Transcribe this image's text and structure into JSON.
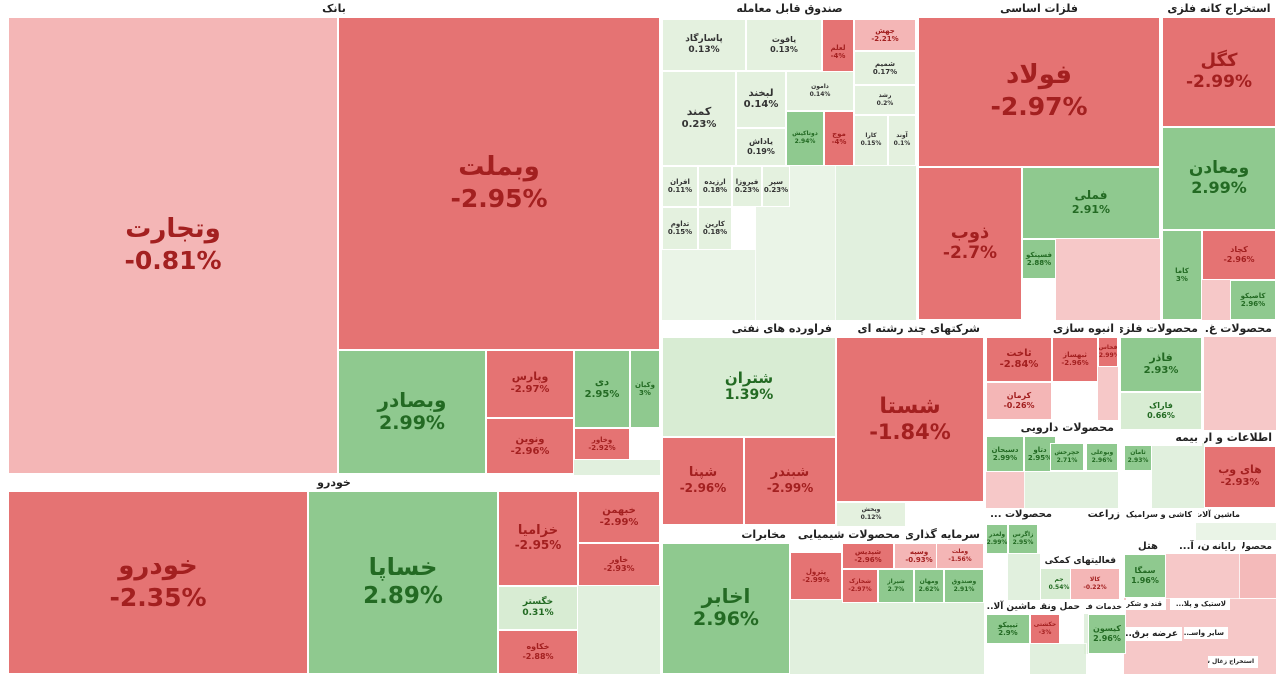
{
  "palette": {
    "neg_strong": "#e57373",
    "neg_light": "#f4b6b6",
    "pos_strong": "#8fc98f",
    "pos_light": "#d8ecd3",
    "neutral": "#e4f1df",
    "text_neg": "#a32020",
    "text_pos": "#236a23",
    "text_dark": "#333333"
  },
  "chart_data": {
    "type": "treemap",
    "title": "",
    "sectors": [
      {
        "name": "بانک"
      },
      {
        "name": "خودرو"
      },
      {
        "name": "صندوق قابل معامله"
      },
      {
        "name": "فلزات اساسی"
      },
      {
        "name": "استخراج کانه فلزی"
      },
      {
        "name": "فراورده های نفتی"
      },
      {
        "name": "شرکتهای چند رشته ای"
      },
      {
        "name": "انبوه سازی"
      },
      {
        "name": "محصولات فلزی"
      },
      {
        "name": "محصولات غ..."
      },
      {
        "name": "محصولات دارویی"
      },
      {
        "name": "بیمه"
      },
      {
        "name": "اطلاعات و ارتبا..."
      },
      {
        "name": "مخابرات"
      },
      {
        "name": "محصولات شیمیایی"
      },
      {
        "name": "سرمایه گذاری"
      },
      {
        "name": "زراعت"
      },
      {
        "name": "محصولات ..."
      },
      {
        "name": "هتل"
      },
      {
        "name": "سیمان، آ..."
      },
      {
        "name": "رایانه"
      },
      {
        "name": "محصولا..."
      },
      {
        "name": "فعالیتهای کمکی"
      },
      {
        "name": "حمل ونقل"
      },
      {
        "name": "ماشین آلا..."
      },
      {
        "name": "خدمات ف..."
      },
      {
        "name": "کاشی و سرامیک"
      },
      {
        "name": "ماشین آلات"
      },
      {
        "name": "قند و شکر"
      },
      {
        "name": "لاستیک و پلا..."
      },
      {
        "name": "عرضه برق..."
      },
      {
        "name": "سایر واسـ..."
      },
      {
        "name": "استخراج زغال سنگ"
      }
    ],
    "stocks": [
      {
        "symbol": "وتجارت",
        "change": -0.81
      },
      {
        "symbol": "وبملت",
        "change": -2.95
      },
      {
        "symbol": "وبصادر",
        "change": 2.99
      },
      {
        "symbol": "وپارس",
        "change": -2.97
      },
      {
        "symbol": "ونوین",
        "change": -2.96
      },
      {
        "symbol": "دی",
        "change": 2.95
      },
      {
        "symbol": "وکبان",
        "change": 3
      },
      {
        "symbol": "وخاور",
        "change": -2.92
      },
      {
        "symbol": "خودرو",
        "change": -2.35
      },
      {
        "symbol": "خساپا",
        "change": 2.89
      },
      {
        "symbol": "خزامیا",
        "change": -2.95
      },
      {
        "symbol": "خبهمن",
        "change": -2.99
      },
      {
        "symbol": "خاور",
        "change": -2.93
      },
      {
        "symbol": "خگستر",
        "change": 0.31
      },
      {
        "symbol": "خکاوه",
        "change": -2.88
      },
      {
        "symbol": "پاسارگاد",
        "change": 0.13
      },
      {
        "symbol": "یاقوت",
        "change": 0.13
      },
      {
        "symbol": "لعلم",
        "change": -4
      },
      {
        "symbol": "جهش",
        "change": -2.21
      },
      {
        "symbol": "شمیم",
        "change": 0.17
      },
      {
        "symbol": "کمند",
        "change": 0.23
      },
      {
        "symbol": "لبخند",
        "change": 0.14
      },
      {
        "symbol": "دامون",
        "change": 0.14
      },
      {
        "symbol": "رشد",
        "change": 0.2
      },
      {
        "symbol": "یاداش",
        "change": 0.19
      },
      {
        "symbol": "دوتاکیش",
        "change": 2.94
      },
      {
        "symbol": "موج",
        "change": -4
      },
      {
        "symbol": "کارا",
        "change": 0.15
      },
      {
        "symbol": "آوند",
        "change": 0.1
      },
      {
        "symbol": "افران",
        "change": 0.11
      },
      {
        "symbol": "ارزیده",
        "change": 0.18
      },
      {
        "symbol": "فیروزا",
        "change": 0.23
      },
      {
        "symbol": "سپر",
        "change": 0.23
      },
      {
        "symbol": "تداوم",
        "change": 0.15
      },
      {
        "symbol": "کارین",
        "change": 0.18
      },
      {
        "symbol": "فولاد",
        "change": -2.97
      },
      {
        "symbol": "ذوب",
        "change": -2.7
      },
      {
        "symbol": "فملی",
        "change": 2.91
      },
      {
        "symbol": "فسپنکو",
        "change": 2.88
      },
      {
        "symbol": "کگل",
        "change": -2.99
      },
      {
        "symbol": "ومعادن",
        "change": 2.99
      },
      {
        "symbol": "کچاد",
        "change": -2.96
      },
      {
        "symbol": "کاما",
        "change": 3
      },
      {
        "symbol": "کاصیکو",
        "change": 2.96
      },
      {
        "symbol": "شتران",
        "change": 1.39
      },
      {
        "symbol": "شپنا",
        "change": -2.96
      },
      {
        "symbol": "شبندر",
        "change": -2.99
      },
      {
        "symbol": "شستا",
        "change": -1.84
      },
      {
        "symbol": "وپخش",
        "change": 0.12
      },
      {
        "symbol": "ثاخت",
        "change": -2.84
      },
      {
        "symbol": "ثبهساز",
        "change": -2.96
      },
      {
        "symbol": "کرمان",
        "change": -0.26
      },
      {
        "symbol": "فخاس",
        "change": -2.99
      },
      {
        "symbol": "فاذر",
        "change": 2.93
      },
      {
        "symbol": "فاراک",
        "change": 0.66
      },
      {
        "symbol": "دسبحان",
        "change": 2.99
      },
      {
        "symbol": "دتاو",
        "change": 2.95
      },
      {
        "symbol": "های وب",
        "change": -2.93
      },
      {
        "symbol": "اخابر",
        "change": 2.96
      },
      {
        "symbol": "شپدیس",
        "change": -2.96
      },
      {
        "symbol": "وسپه",
        "change": -0.93
      },
      {
        "symbol": "پترول",
        "change": -2.99
      },
      {
        "symbol": "شخارک",
        "change": -2.97
      },
      {
        "symbol": "شیراز",
        "change": 2.7
      },
      {
        "symbol": "ومهان",
        "change": 2.62
      },
      {
        "symbol": "وصندوق",
        "change": 2.91
      },
      {
        "symbol": "ولغدر",
        "change": 2.99
      },
      {
        "symbol": "زاگرس",
        "change": 2.95
      },
      {
        "symbol": "سمگا",
        "change": 1.96
      },
      {
        "symbol": "جم",
        "change": 0.54
      },
      {
        "symbol": "کالا",
        "change": -0.22
      },
      {
        "symbol": "حکشتی",
        "change": -3
      },
      {
        "symbol": "تیپیکو",
        "change": 2.9
      },
      {
        "symbol": "کیسون",
        "change": 2.96
      },
      {
        "symbol": "ثامان",
        "change": 2.93
      },
      {
        "symbol": "خچرخش",
        "change": 2.71
      },
      {
        "symbol": "وبوعلی",
        "change": 2.96
      },
      {
        "symbol": "وملت",
        "change": -1.56
      }
    ]
  },
  "tiles": [
    {
      "sym": "وتجارت",
      "chg": "-0.81%",
      "tone": "neg_light"
    },
    {
      "sym": "وبملت",
      "chg": "-2.95%",
      "tone": "neg_strong"
    },
    {
      "sym": "وبصادر",
      "chg": "2.99%",
      "tone": "pos_strong"
    },
    {
      "sym": "وپارس",
      "chg": "-2.97%",
      "tone": "neg_strong"
    },
    {
      "sym": "ونوین",
      "chg": "-2.96%",
      "tone": "neg_strong"
    },
    {
      "sym": "دی",
      "chg": "2.95%",
      "tone": "pos_strong"
    },
    {
      "sym": "وکبان",
      "chg": "3%",
      "tone": "pos_strong"
    },
    {
      "sym": "وخاور",
      "chg": "-2.92%",
      "tone": "neg_strong"
    },
    {
      "sym": "خودرو",
      "chg": "-2.35%",
      "tone": "neg_strong"
    },
    {
      "sym": "خساپا",
      "chg": "2.89%",
      "tone": "pos_strong"
    },
    {
      "sym": "خزامیا",
      "chg": "-2.95%",
      "tone": "neg_strong"
    },
    {
      "sym": "خبهمن",
      "chg": "-2.99%",
      "tone": "neg_strong"
    },
    {
      "sym": "خاور",
      "chg": "-2.93%",
      "tone": "neg_strong"
    },
    {
      "sym": "خگستر",
      "chg": "0.31%",
      "tone": "pos_light"
    },
    {
      "sym": "خکاوه",
      "chg": "-2.88%",
      "tone": "neg_strong"
    },
    {
      "sym": "پاسارگاد",
      "chg": "0.13%",
      "tone": "neutral"
    },
    {
      "sym": "یاقوت",
      "chg": "0.13%",
      "tone": "neutral"
    },
    {
      "sym": "لعلم",
      "chg": "-4%",
      "tone": "neg_strong"
    },
    {
      "sym": "جهش",
      "chg": "-2.21%",
      "tone": "neg_light"
    },
    {
      "sym": "شمیم",
      "chg": "0.17%",
      "tone": "neutral"
    },
    {
      "sym": "کمند",
      "chg": "0.23%",
      "tone": "neutral"
    },
    {
      "sym": "لبخند",
      "chg": "0.14%",
      "tone": "neutral"
    },
    {
      "sym": "دامون",
      "chg": "0.14%",
      "tone": "neutral"
    },
    {
      "sym": "رشد",
      "chg": "0.2%",
      "tone": "neutral"
    },
    {
      "sym": "یاداش",
      "chg": "0.19%",
      "tone": "neutral"
    },
    {
      "sym": "دوتاکیش",
      "chg": "2.94%",
      "tone": "pos_strong"
    },
    {
      "sym": "موج",
      "chg": "-4%",
      "tone": "neg_strong"
    },
    {
      "sym": "کارا",
      "chg": "0.15%",
      "tone": "neutral"
    },
    {
      "sym": "آوند",
      "chg": "0.1%",
      "tone": "neutral"
    },
    {
      "sym": "افران",
      "chg": "0.11%",
      "tone": "neutral"
    },
    {
      "sym": "ارزیده",
      "chg": "0.18%",
      "tone": "neutral"
    },
    {
      "sym": "فیروزا",
      "chg": "0.23%",
      "tone": "neutral"
    },
    {
      "sym": "سپر",
      "chg": "0.23%",
      "tone": "neutral"
    },
    {
      "sym": "تداوم",
      "chg": "0.15%",
      "tone": "neutral"
    },
    {
      "sym": "کارین",
      "chg": "0.18%",
      "tone": "neutral"
    },
    {
      "sym": "فولاد",
      "chg": "-2.97%",
      "tone": "neg_strong"
    },
    {
      "sym": "ذوب",
      "chg": "-2.7%",
      "tone": "neg_strong"
    },
    {
      "sym": "فملی",
      "chg": "2.91%",
      "tone": "pos_strong"
    },
    {
      "sym": "فسپنکو",
      "chg": "2.88%",
      "tone": "pos_strong"
    },
    {
      "sym": "کگل",
      "chg": "-2.99%",
      "tone": "neg_strong"
    },
    {
      "sym": "ومعادن",
      "chg": "2.99%",
      "tone": "pos_strong"
    },
    {
      "sym": "کچاد",
      "chg": "-2.96%",
      "tone": "neg_strong"
    },
    {
      "sym": "کاما",
      "chg": "3%",
      "tone": "pos_strong"
    },
    {
      "sym": "کاصیکو",
      "chg": "2.96%",
      "tone": "pos_strong"
    },
    {
      "sym": "شتران",
      "chg": "1.39%",
      "tone": "pos_light"
    },
    {
      "sym": "شپنا",
      "chg": "-2.96%",
      "tone": "neg_strong"
    },
    {
      "sym": "شبندر",
      "chg": "-2.99%",
      "tone": "neg_strong"
    },
    {
      "sym": "شستا",
      "chg": "-1.84%",
      "tone": "neg_strong"
    },
    {
      "sym": "وپخش",
      "chg": "0.12%",
      "tone": "neutral"
    },
    {
      "sym": "ثاخت",
      "chg": "-2.84%",
      "tone": "neg_strong"
    },
    {
      "sym": "ثبهساز",
      "chg": "-2.96%",
      "tone": "neg_strong"
    },
    {
      "sym": "کرمان",
      "chg": "-0.26%",
      "tone": "neg_light"
    },
    {
      "sym": "فخاس",
      "chg": "-2.99%",
      "tone": "neg_strong"
    },
    {
      "sym": "فاذر",
      "chg": "2.93%",
      "tone": "pos_strong"
    },
    {
      "sym": "فاراک",
      "chg": "0.66%",
      "tone": "pos_light"
    },
    {
      "sym": "دسبحان",
      "chg": "2.99%",
      "tone": "pos_strong"
    },
    {
      "sym": "دتاو",
      "chg": "2.95%",
      "tone": "pos_strong"
    },
    {
      "sym": "های وب",
      "chg": "-2.93%",
      "tone": "neg_strong"
    },
    {
      "sym": "اخابر",
      "chg": "2.96%",
      "tone": "pos_strong"
    },
    {
      "sym": "شپدیس",
      "chg": "-2.96%",
      "tone": "neg_strong"
    },
    {
      "sym": "وسپه",
      "chg": "-0.93%",
      "tone": "neg_light"
    },
    {
      "sym": "پترول",
      "chg": "-2.99%",
      "tone": "neg_strong"
    },
    {
      "sym": "شخارک",
      "chg": "-2.97%",
      "tone": "neg_strong"
    },
    {
      "sym": "شیراز",
      "chg": "2.7%",
      "tone": "pos_strong"
    },
    {
      "sym": "ومهان",
      "chg": "2.62%",
      "tone": "pos_strong"
    },
    {
      "sym": "وصندوق",
      "chg": "2.91%",
      "tone": "pos_strong"
    },
    {
      "sym": "ولغدر",
      "chg": "2.99%",
      "tone": "pos_strong"
    },
    {
      "sym": "زاگرس",
      "chg": "2.95%",
      "tone": "pos_strong"
    },
    {
      "sym": "سمگا",
      "chg": "1.96%",
      "tone": "pos_strong"
    },
    {
      "sym": "جم",
      "chg": "0.54%",
      "tone": "pos_light"
    },
    {
      "sym": "کالا",
      "chg": "-0.22%",
      "tone": "neg_light"
    },
    {
      "sym": "حکشتی",
      "chg": "-3%",
      "tone": "neg_strong"
    },
    {
      "sym": "تیپیکو",
      "chg": "2.9%",
      "tone": "pos_strong"
    },
    {
      "sym": "کیسون",
      "chg": "2.96%",
      "tone": "pos_strong"
    },
    {
      "sym": "ثامان",
      "chg": "2.93%",
      "tone": "pos_strong"
    },
    {
      "sym": "خچرخش",
      "chg": "2.71%",
      "tone": "pos_strong"
    },
    {
      "sym": "وبوعلی",
      "chg": "2.96%",
      "tone": "pos_strong"
    },
    {
      "sym": "وملت",
      "chg": "-1.56%",
      "tone": "neg_light"
    }
  ]
}
